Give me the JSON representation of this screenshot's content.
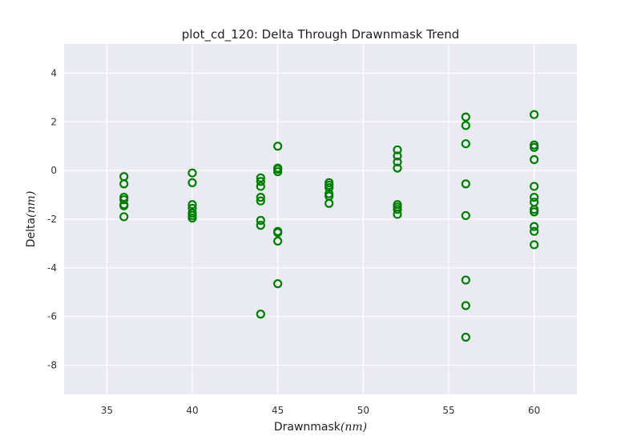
{
  "chart_data": {
    "type": "scatter",
    "title": "plot_cd_120: Delta Through Drawnmask Trend",
    "xlabel": "Drawnmask",
    "ylabel": "Delta",
    "xlabel_unit": "(nm)",
    "ylabel_unit": "(nm)",
    "xlim": [
      32.5,
      62.5
    ],
    "ylim": [
      -9.2,
      5.2
    ],
    "xticks": [
      35,
      40,
      45,
      50,
      55,
      60
    ],
    "yticks": [
      -8,
      -6,
      -4,
      -2,
      0,
      2,
      4
    ],
    "grid": true,
    "marker": "open-circle",
    "marker_color": "#008000",
    "background_color": "#EAEAF2",
    "grid_color": "#FFFFFF",
    "series": [
      {
        "points": [
          [
            36,
            -0.25
          ],
          [
            36,
            -0.55
          ],
          [
            36,
            -1.1
          ],
          [
            36,
            -1.2
          ],
          [
            36,
            -1.4
          ],
          [
            36,
            -1.45
          ],
          [
            36,
            -1.9
          ],
          [
            40,
            -0.1
          ],
          [
            40,
            -0.5
          ],
          [
            40,
            -1.4
          ],
          [
            40,
            -1.55
          ],
          [
            40,
            -1.75
          ],
          [
            40,
            -1.85
          ],
          [
            40,
            -1.95
          ],
          [
            44,
            -0.3
          ],
          [
            44,
            -0.45
          ],
          [
            44,
            -0.65
          ],
          [
            44,
            -1.1
          ],
          [
            44,
            -1.25
          ],
          [
            44,
            -2.05
          ],
          [
            44,
            -2.25
          ],
          [
            44,
            -5.9
          ],
          [
            45,
            1.0
          ],
          [
            45,
            0.1
          ],
          [
            45,
            0.05
          ],
          [
            45,
            -0.05
          ],
          [
            45,
            -2.5
          ],
          [
            45,
            -2.55
          ],
          [
            45,
            -2.9
          ],
          [
            45,
            -4.65
          ],
          [
            48,
            -0.5
          ],
          [
            48,
            -0.6
          ],
          [
            48,
            -0.7
          ],
          [
            48,
            -0.95
          ],
          [
            48,
            -1.05
          ],
          [
            48,
            -1.35
          ],
          [
            52,
            0.85
          ],
          [
            52,
            0.6
          ],
          [
            52,
            0.35
          ],
          [
            52,
            0.1
          ],
          [
            52,
            -1.4
          ],
          [
            52,
            -1.5
          ],
          [
            52,
            -1.6
          ],
          [
            52,
            -1.8
          ],
          [
            56,
            2.2
          ],
          [
            56,
            1.85
          ],
          [
            56,
            1.1
          ],
          [
            56,
            -0.55
          ],
          [
            56,
            -1.85
          ],
          [
            56,
            -4.5
          ],
          [
            56,
            -5.55
          ],
          [
            56,
            -6.85
          ],
          [
            60,
            2.3
          ],
          [
            60,
            1.05
          ],
          [
            60,
            0.95
          ],
          [
            60,
            0.45
          ],
          [
            60,
            -0.65
          ],
          [
            60,
            -1.1
          ],
          [
            60,
            -1.3
          ],
          [
            60,
            -1.6
          ],
          [
            60,
            -1.7
          ],
          [
            60,
            -2.3
          ],
          [
            60,
            -2.5
          ],
          [
            60,
            -3.05
          ]
        ]
      }
    ]
  }
}
